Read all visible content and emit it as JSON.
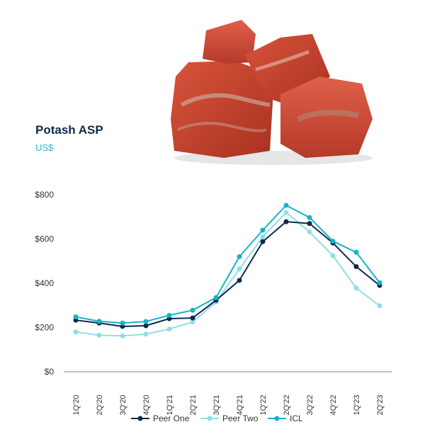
{
  "header": {
    "title": "Potash ASP",
    "subtitle": "US$"
  },
  "colors": {
    "title": "#0c2c48",
    "subtitle": "#2bb8c9",
    "rock": "#c9422f"
  },
  "decor_icon": "potash-rocks-image",
  "chart_data": {
    "type": "line",
    "title": "Potash ASP",
    "subtitle": "US$",
    "categories": [
      "1Q'20",
      "2Q'20",
      "3Q'20",
      "4Q'20",
      "1Q'21",
      "2Q'21",
      "3Q'21",
      "4Q'21",
      "1Q'22",
      "2Q'22",
      "3Q'22",
      "4Q'22",
      "1Q'23",
      "2Q'23"
    ],
    "ylim": [
      0,
      800
    ],
    "yticks": [
      0,
      200,
      400,
      600,
      800
    ],
    "ytick_labels": [
      "$0",
      "$200",
      "$400",
      "$600",
      "$800"
    ],
    "grid": false,
    "legend_position": "bottom-center",
    "series": [
      {
        "name": "Peer One",
        "color": "#0c2c48",
        "values": [
          233,
          220,
          205,
          208,
          240,
          243,
          323,
          413,
          588,
          678,
          670,
          582,
          475,
          390
        ]
      },
      {
        "name": "Peer Two",
        "color": "#8fdfe2",
        "values": [
          180,
          165,
          162,
          170,
          193,
          225,
          315,
          465,
          610,
          720,
          632,
          525,
          378,
          298
        ]
      },
      {
        "name": "ICL",
        "color": "#16b3c9",
        "values": [
          248,
          228,
          220,
          227,
          255,
          278,
          335,
          520,
          640,
          752,
          697,
          590,
          540,
          402
        ]
      }
    ]
  }
}
